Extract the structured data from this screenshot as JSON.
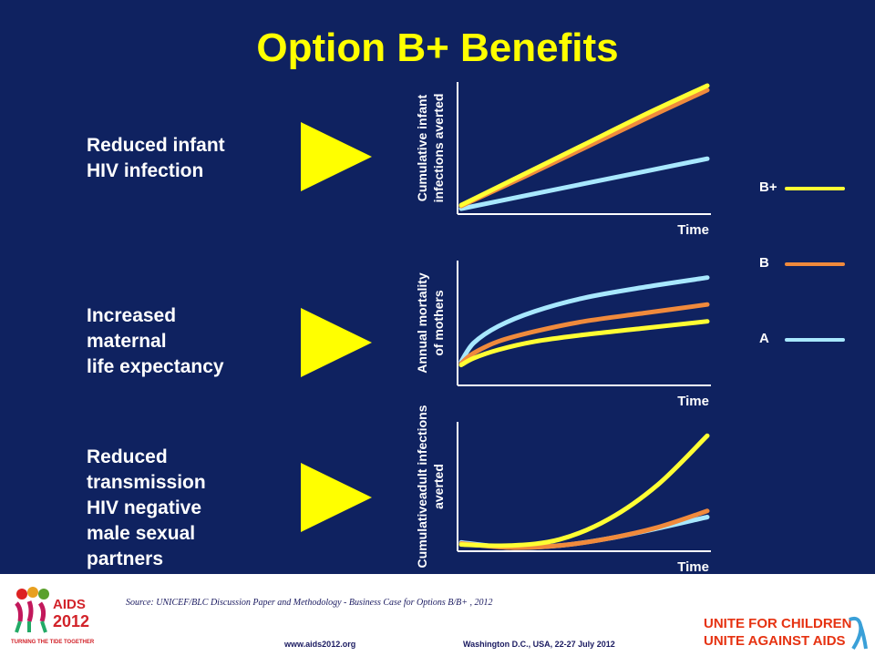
{
  "slide": {
    "title": "Option B+ Benefits",
    "source": "Source: UNICEF/BLC Discussion Paper and Methodology - Business Case for Options B/B+ , 2012",
    "url": "www.aids2012.org",
    "location": "Washington D.C., USA, 22-27 July 2012",
    "logo_left_text": "AIDS 2012",
    "logo_left_tagline": "TURNING THE TIDE TOGETHER",
    "logo_right_line1": "UNITE FOR CHILDREN",
    "logo_right_line2": "UNITE AGAINST AIDS"
  },
  "rows": [
    {
      "description": "Reduced infant\nHIV infection"
    },
    {
      "description": "Increased\nmaternal\nlife expectancy"
    },
    {
      "description": "Reduced\ntransmission\nHIV negative\nmale sexual\npartners"
    }
  ],
  "legend": [
    {
      "label": "B+",
      "color": "#ffff33"
    },
    {
      "label": "B",
      "color": "#f08a3c"
    },
    {
      "label": "A",
      "color": "#a8e8ff"
    }
  ],
  "chart_data": [
    {
      "type": "line",
      "ylabel": "Cumulative infant infections averted",
      "xlabel": "Time",
      "x": [
        0,
        0.25,
        0.5,
        0.75,
        1
      ],
      "ylim": [
        0,
        1.4
      ],
      "series": [
        {
          "name": "B+",
          "values": [
            0.06,
            0.4,
            0.74,
            1.08,
            1.4
          ]
        },
        {
          "name": "B",
          "values": [
            0.05,
            0.37,
            0.7,
            1.03,
            1.35
          ]
        },
        {
          "name": "A",
          "values": [
            0.02,
            0.16,
            0.3,
            0.44,
            0.58
          ]
        }
      ]
    },
    {
      "type": "line",
      "ylabel": "Annual mortality of mothers",
      "xlabel": "Time",
      "x": [
        0,
        0.05,
        0.15,
        0.3,
        0.5,
        0.75,
        1
      ],
      "ylim": [
        0,
        1.4
      ],
      "series": [
        {
          "name": "B+",
          "values": [
            0.2,
            0.28,
            0.38,
            0.48,
            0.56,
            0.64,
            0.72
          ]
        },
        {
          "name": "B",
          "values": [
            0.22,
            0.34,
            0.48,
            0.6,
            0.72,
            0.82,
            0.92
          ]
        },
        {
          "name": "A",
          "values": [
            0.24,
            0.46,
            0.66,
            0.84,
            1.0,
            1.13,
            1.24
          ]
        }
      ]
    },
    {
      "type": "line",
      "ylabel": "Cumulativeadult infections averted",
      "xlabel": "Time",
      "x": [
        0,
        0.2,
        0.4,
        0.6,
        0.8,
        1
      ],
      "ylim": [
        0,
        1.2
      ],
      "series": [
        {
          "name": "B+",
          "values": [
            0.03,
            0.02,
            0.08,
            0.28,
            0.62,
            1.1
          ]
        },
        {
          "name": "B",
          "values": [
            0.04,
            0.0,
            0.02,
            0.09,
            0.2,
            0.36
          ]
        },
        {
          "name": "A",
          "values": [
            0.05,
            0.0,
            0.02,
            0.09,
            0.19,
            0.3
          ]
        }
      ]
    }
  ]
}
